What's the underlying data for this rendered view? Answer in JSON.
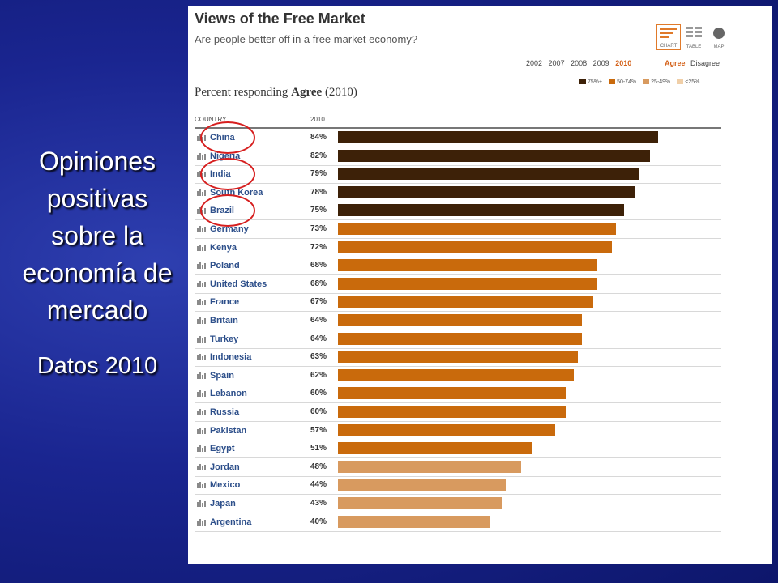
{
  "caption": {
    "headline": "Opiniones\npositivas\nsobre la\neconomía de\nmercado",
    "sub": "Datos 2010"
  },
  "panel": {
    "title": "Views of the Free Market",
    "subtitle": "Are people better off in a free market economy?",
    "view_tabs": [
      {
        "label": "CHART",
        "icon": "bar-chart-icon",
        "active": true
      },
      {
        "label": "TABLE",
        "icon": "table-icon",
        "active": false
      },
      {
        "label": "MAP",
        "icon": "globe-icon",
        "active": false
      }
    ],
    "years": [
      "2002",
      "2007",
      "2008",
      "2009",
      "2010"
    ],
    "active_year": "2010",
    "agree_label": "Agree",
    "disagree_label": "Disagree",
    "legend": [
      {
        "label": "75%+",
        "color": "#3d2108"
      },
      {
        "label": "50-74%",
        "color": "#c96a0c"
      },
      {
        "label": "25-49%",
        "color": "#d89a5f"
      },
      {
        "label": "<25%",
        "color": "#f0cfa8"
      }
    ],
    "percent_prefix": "Percent responding ",
    "percent_bold": "Agree",
    "percent_suffix": " (2010)",
    "col_country": "COUNTRY",
    "col_year": "2010"
  },
  "chart_data": {
    "type": "bar",
    "orientation": "horizontal",
    "title": "Views of the Free Market",
    "categories": [
      "China",
      "Nigeria",
      "India",
      "South Korea",
      "Brazil",
      "Germany",
      "Kenya",
      "Poland",
      "United States",
      "France",
      "Britain",
      "Turkey",
      "Indonesia",
      "Spain",
      "Lebanon",
      "Russia",
      "Pakistan",
      "Egypt",
      "Jordan",
      "Mexico",
      "Japan",
      "Argentina"
    ],
    "values": [
      84,
      82,
      79,
      78,
      75,
      73,
      72,
      68,
      68,
      67,
      64,
      64,
      63,
      62,
      60,
      60,
      57,
      51,
      48,
      44,
      43,
      40
    ],
    "value_labels": [
      "84%",
      "82%",
      "79%",
      "78%",
      "75%",
      "73%",
      "72%",
      "68%",
      "68%",
      "67%",
      "64%",
      "64%",
      "63%",
      "62%",
      "60%",
      "60%",
      "57%",
      "51%",
      "48%",
      "44%",
      "43%",
      "40%"
    ],
    "xlim": [
      0,
      100
    ],
    "highlighted": [
      "China",
      "India",
      "Brazil"
    ],
    "color_bins": [
      {
        "min": 75,
        "color": "#3d2108"
      },
      {
        "min": 50,
        "color": "#c96a0c"
      },
      {
        "min": 25,
        "color": "#d89a5f"
      },
      {
        "min": 0,
        "color": "#f0cfa8"
      }
    ],
    "highlight_color": "#d61e1e"
  }
}
